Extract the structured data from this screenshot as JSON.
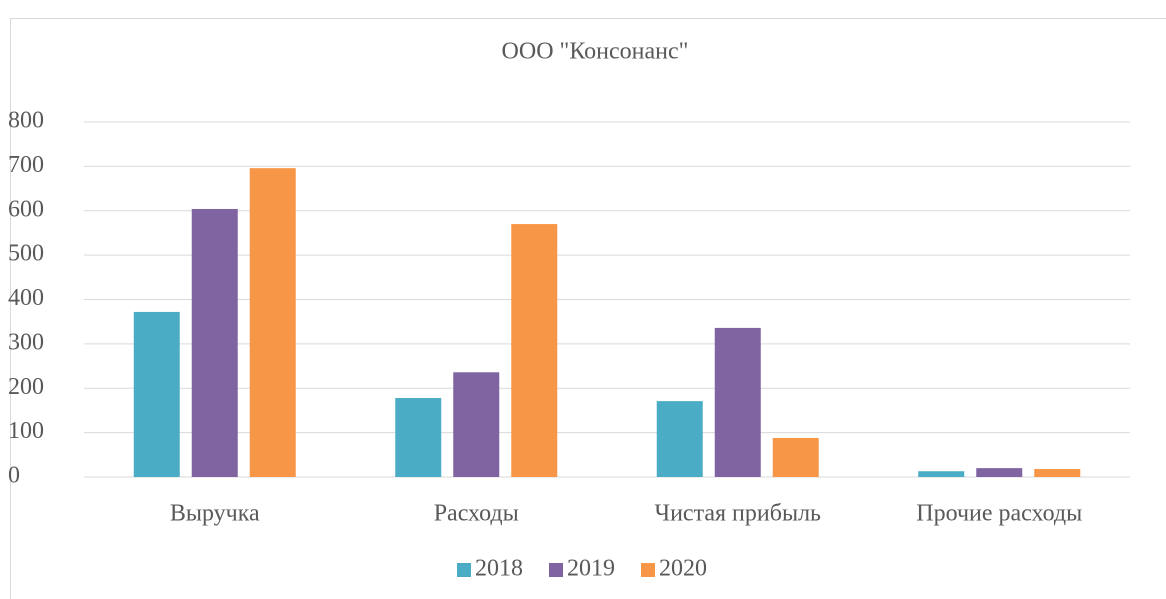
{
  "chart_data": {
    "type": "bar",
    "title": "ООО \"Консонанс\"",
    "categories": [
      "Выручка",
      "Расходы",
      "Чистая прибыль",
      "Прочие расходы"
    ],
    "series": [
      {
        "name": "2018",
        "color": "#4bacc6",
        "values": [
          372,
          178,
          171,
          13
        ]
      },
      {
        "name": "2019",
        "color": "#8064a2",
        "values": [
          604,
          236,
          336,
          20
        ]
      },
      {
        "name": "2020",
        "color": "#f79646",
        "values": [
          696,
          570,
          88,
          18
        ]
      }
    ],
    "ylim": [
      0,
      800
    ],
    "yticks": [
      0,
      100,
      200,
      300,
      400,
      500,
      600,
      700,
      800
    ],
    "grid": true,
    "legend": "bottom"
  }
}
